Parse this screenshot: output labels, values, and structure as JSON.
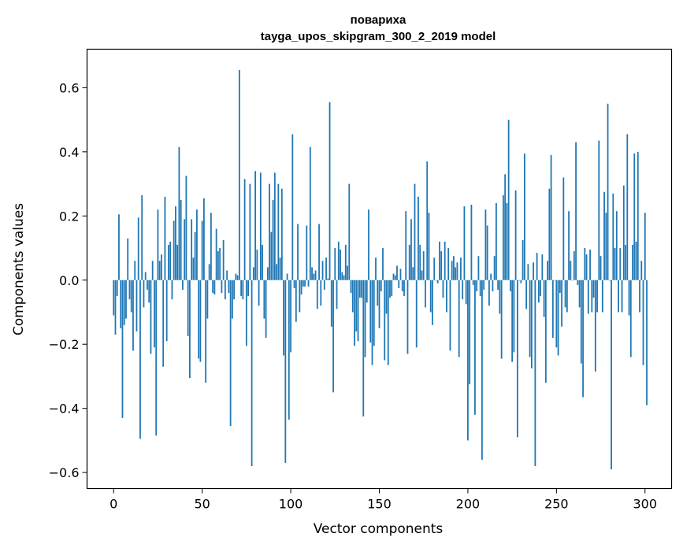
{
  "chart_data": {
    "type": "bar",
    "title": "повариха",
    "subtitle": "tayga_upos_skipgram_300_2_2019 model",
    "xlabel": "Vector components",
    "ylabel": "Components values",
    "xlim": [
      -15,
      315
    ],
    "ylim": [
      -0.65,
      0.72
    ],
    "xticks": [
      0,
      50,
      100,
      150,
      200,
      250,
      300
    ],
    "yticks": [
      -0.6,
      -0.4,
      -0.2,
      0.0,
      0.2,
      0.4,
      0.6
    ],
    "ytick_labels": [
      "−0.6",
      "−0.4",
      "−0.2",
      "0.0",
      "0.2",
      "0.4",
      "0.6"
    ],
    "xtick_labels": [
      "0",
      "50",
      "100",
      "150",
      "200",
      "250",
      "300"
    ],
    "bar_color": "#1f77b4",
    "grid": false,
    "legend": "none",
    "values": [
      -0.11,
      -0.17,
      -0.05,
      0.205,
      -0.15,
      -0.43,
      -0.14,
      -0.12,
      0.13,
      -0.06,
      -0.1,
      -0.22,
      0.06,
      -0.16,
      0.195,
      -0.495,
      0.265,
      -0.085,
      0.025,
      -0.03,
      -0.07,
      -0.23,
      0.06,
      -0.21,
      -0.485,
      0.22,
      0.06,
      0.08,
      -0.27,
      0.26,
      -0.19,
      0.11,
      0.12,
      -0.06,
      0.185,
      0.23,
      0.11,
      0.415,
      0.25,
      -0.03,
      0.19,
      0.325,
      -0.175,
      -0.305,
      0.19,
      0.07,
      0.15,
      0.22,
      -0.245,
      -0.255,
      0.185,
      0.255,
      -0.32,
      -0.12,
      0.05,
      0.21,
      -0.04,
      -0.045,
      0.16,
      0.09,
      0.1,
      -0.04,
      0.125,
      -0.06,
      0.03,
      -0.04,
      -0.455,
      -0.12,
      -0.06,
      0.02,
      0.015,
      0.655,
      -0.05,
      -0.06,
      0.315,
      -0.205,
      -0.05,
      0.3,
      -0.58,
      0.04,
      0.34,
      0.095,
      -0.08,
      0.335,
      0.11,
      -0.12,
      -0.18,
      0.04,
      0.3,
      0.15,
      0.25,
      0.335,
      0.05,
      0.3,
      0.07,
      0.285,
      -0.235,
      -0.57,
      0.02,
      -0.435,
      -0.225,
      0.455,
      -0.025,
      -0.13,
      0.175,
      -0.1,
      -0.045,
      -0.02,
      -0.02,
      0.17,
      -0.02,
      0.415,
      0.04,
      0.02,
      0.03,
      -0.09,
      0.175,
      -0.08,
      0.06,
      -0.03,
      0.07,
      0.005,
      0.555,
      -0.145,
      -0.35,
      0.1,
      -0.09,
      0.12,
      0.095,
      0.025,
      0.015,
      0.11,
      0.045,
      0.3,
      -0.04,
      -0.1,
      -0.205,
      -0.16,
      -0.19,
      -0.055,
      -0.055,
      -0.425,
      -0.24,
      -0.07,
      0.22,
      -0.195,
      -0.265,
      -0.205,
      0.07,
      -0.08,
      -0.15,
      -0.035,
      0.1,
      -0.25,
      -0.105,
      -0.265,
      -0.055,
      -0.05,
      0.02,
      0.015,
      0.045,
      -0.025,
      0.035,
      -0.035,
      -0.05,
      0.215,
      -0.23,
      0.11,
      0.19,
      0.04,
      0.3,
      -0.21,
      0.26,
      0.11,
      0.03,
      0.09,
      -0.085,
      0.37,
      0.21,
      -0.1,
      -0.14,
      0.07,
      0.0,
      -0.01,
      0.12,
      0.09,
      -0.055,
      0.12,
      -0.1,
      0.1,
      -0.22,
      0.06,
      0.075,
      0.04,
      0.055,
      -0.24,
      0.07,
      -0.06,
      0.23,
      -0.075,
      -0.5,
      -0.325,
      0.235,
      -0.015,
      -0.42,
      -0.035,
      0.075,
      -0.05,
      -0.56,
      -0.03,
      0.22,
      0.17,
      -0.08,
      0.02,
      -0.035,
      0.075,
      0.24,
      -0.03,
      -0.105,
      -0.245,
      0.265,
      0.33,
      0.24,
      0.5,
      -0.035,
      -0.255,
      -0.225,
      0.28,
      -0.49,
      0.0,
      -0.01,
      0.125,
      0.395,
      -0.09,
      0.05,
      -0.24,
      -0.275,
      0.055,
      -0.58,
      0.085,
      -0.07,
      -0.05,
      0.08,
      -0.115,
      -0.32,
      0.06,
      0.285,
      0.39,
      -0.18,
      0.0,
      -0.21,
      -0.235,
      -0.04,
      -0.145,
      0.32,
      -0.085,
      -0.1,
      0.215,
      0.06,
      0.0,
      0.09,
      0.43,
      -0.015,
      -0.085,
      -0.26,
      -0.365,
      0.1,
      0.08,
      -0.105,
      0.095,
      -0.1,
      -0.055,
      -0.285,
      -0.1,
      0.435,
      0.075,
      -0.1,
      0.275,
      0.21,
      0.55,
      0.0,
      -0.59,
      0.27,
      0.1,
      0.215,
      -0.1,
      0.1,
      -0.1,
      0.295,
      0.11,
      0.455,
      -0.11,
      -0.24,
      0.11,
      0.395,
      0.12,
      0.4,
      -0.1,
      0.06,
      -0.265,
      0.21,
      -0.39
    ]
  }
}
